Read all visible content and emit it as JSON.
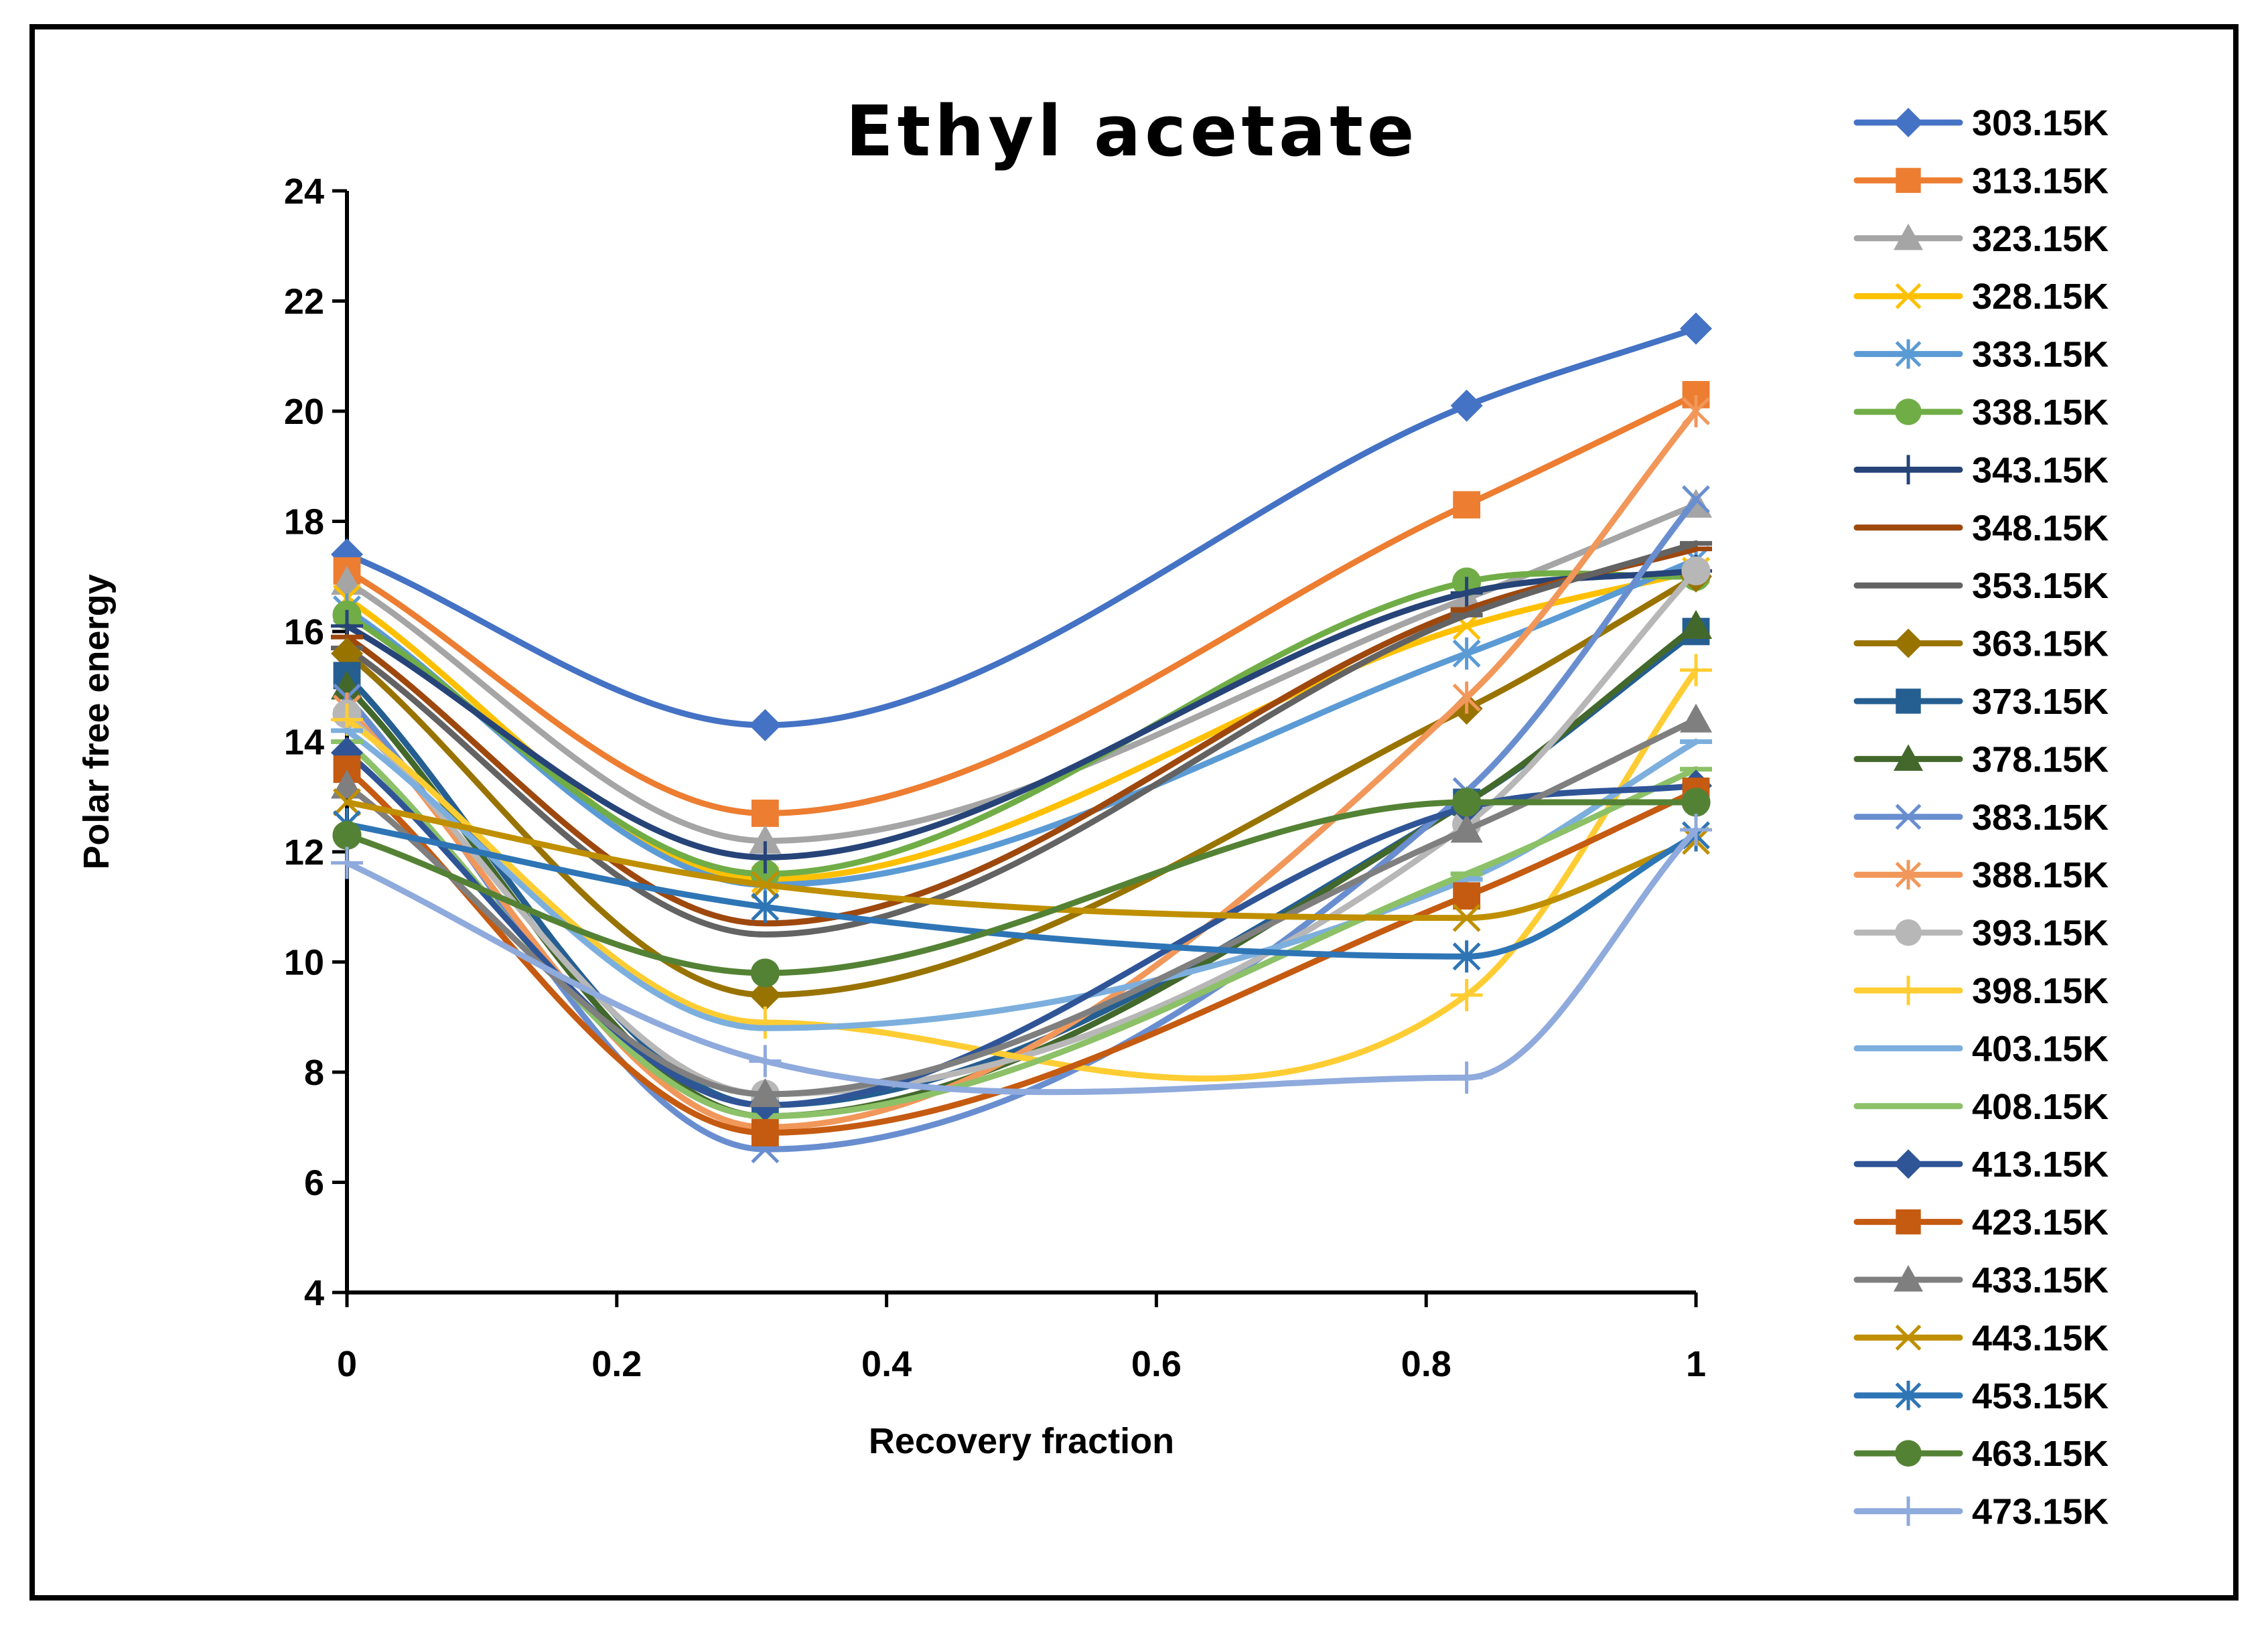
{
  "chart_data": {
    "type": "line",
    "title": "Ethyl acetate",
    "xlabel": "Recovery fraction",
    "ylabel": "Polar free energy",
    "xlim": [
      0,
      1
    ],
    "ylim": [
      4,
      24
    ],
    "x_ticks": [
      "0",
      "0.2",
      "0.4",
      "0.6",
      "0.8",
      "1"
    ],
    "y_ticks": [
      "4",
      "6",
      "8",
      "10",
      "12",
      "14",
      "16",
      "18",
      "20",
      "22",
      "24"
    ],
    "grid": false,
    "legend_position": "right",
    "x": [
      0,
      0.31,
      0.83,
      1
    ],
    "series": [
      {
        "name": "303.15K",
        "color": "#4472C4",
        "marker": "diamond",
        "values": [
          17.4,
          14.3,
          20.1,
          21.5
        ]
      },
      {
        "name": "313.15K",
        "color": "#ED7D31",
        "marker": "square",
        "values": [
          17.1,
          12.7,
          18.3,
          20.3
        ]
      },
      {
        "name": "323.15K",
        "color": "#A5A5A5",
        "marker": "triangle",
        "values": [
          16.9,
          12.2,
          16.6,
          18.3
        ]
      },
      {
        "name": "328.15K",
        "color": "#FFC000",
        "marker": "x",
        "values": [
          16.6,
          11.5,
          16.1,
          17.1
        ]
      },
      {
        "name": "333.15K",
        "color": "#5B9BD5",
        "marker": "star",
        "values": [
          16.4,
          11.4,
          15.6,
          17.3
        ]
      },
      {
        "name": "338.15K",
        "color": "#70AD47",
        "marker": "circle",
        "values": [
          16.3,
          11.6,
          16.9,
          17.0
        ]
      },
      {
        "name": "343.15K",
        "color": "#264478",
        "marker": "plus",
        "values": [
          16.1,
          11.9,
          16.7,
          17.1
        ]
      },
      {
        "name": "348.15K",
        "color": "#9E480E",
        "marker": "dash",
        "values": [
          15.9,
          10.7,
          16.4,
          17.5
        ]
      },
      {
        "name": "353.15K",
        "color": "#636363",
        "marker": "dash",
        "values": [
          15.7,
          10.5,
          16.3,
          17.6
        ]
      },
      {
        "name": "363.15K",
        "color": "#997300",
        "marker": "diamond",
        "values": [
          15.6,
          9.4,
          14.6,
          17.0
        ]
      },
      {
        "name": "373.15K",
        "color": "#255E91",
        "marker": "square",
        "values": [
          15.2,
          7.4,
          12.9,
          16.0
        ]
      },
      {
        "name": "378.15K",
        "color": "#43682B",
        "marker": "triangle",
        "values": [
          15.0,
          7.2,
          12.9,
          16.1
        ]
      },
      {
        "name": "383.15K",
        "color": "#698ED0",
        "marker": "x",
        "values": [
          14.8,
          6.6,
          13.1,
          18.4
        ]
      },
      {
        "name": "388.15K",
        "color": "#F1975A",
        "marker": "star",
        "values": [
          14.6,
          7.0,
          14.8,
          20.0
        ]
      },
      {
        "name": "393.15K",
        "color": "#B7B7B7",
        "marker": "circle",
        "values": [
          14.5,
          7.6,
          12.5,
          17.1
        ]
      },
      {
        "name": "398.15K",
        "color": "#FFCD33",
        "marker": "plus",
        "values": [
          14.4,
          8.9,
          9.4,
          15.3
        ]
      },
      {
        "name": "403.15K",
        "color": "#7CAFDD",
        "marker": "dash",
        "values": [
          14.2,
          8.8,
          11.5,
          14.0
        ]
      },
      {
        "name": "408.15K",
        "color": "#8CC168",
        "marker": "dash",
        "values": [
          14.0,
          7.2,
          11.6,
          13.5
        ]
      },
      {
        "name": "413.15K",
        "color": "#2F5597",
        "marker": "diamond",
        "values": [
          13.8,
          7.4,
          12.8,
          13.2
        ]
      },
      {
        "name": "423.15K",
        "color": "#C55A11",
        "marker": "square",
        "values": [
          13.5,
          6.9,
          11.2,
          13.1
        ]
      },
      {
        "name": "433.15K",
        "color": "#7F7F7F",
        "marker": "triangle",
        "values": [
          13.2,
          7.6,
          12.4,
          14.4
        ]
      },
      {
        "name": "443.15K",
        "color": "#BF8F00",
        "marker": "x",
        "values": [
          12.9,
          11.4,
          10.8,
          12.2
        ]
      },
      {
        "name": "453.15K",
        "color": "#2E75B6",
        "marker": "star",
        "values": [
          12.5,
          11.0,
          10.1,
          12.3
        ]
      },
      {
        "name": "463.15K",
        "color": "#548235",
        "marker": "circle",
        "values": [
          12.3,
          9.8,
          12.9,
          12.9
        ]
      },
      {
        "name": "473.15K",
        "color": "#8FAADC",
        "marker": "plus",
        "values": [
          11.8,
          8.2,
          7.9,
          12.4
        ]
      }
    ]
  }
}
